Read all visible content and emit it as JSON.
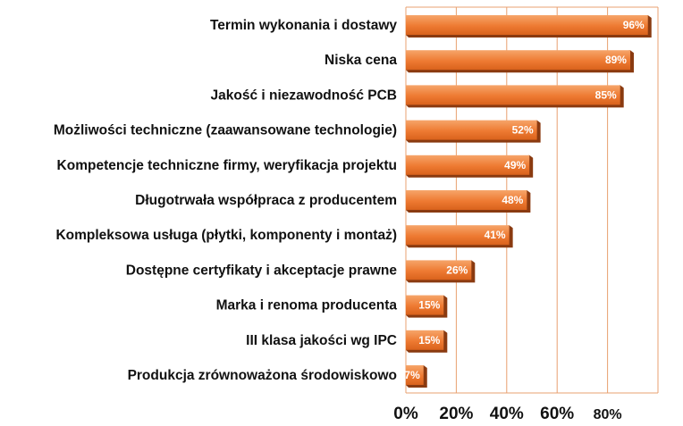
{
  "chart_data": {
    "type": "bar",
    "orientation": "horizontal",
    "categories": [
      "Termin wykonania i dostawy",
      "Niska cena",
      "Jakość i niezawodność PCB",
      "Możliwości techniczne (zaawansowane technologie)",
      "Kompetencje techniczne firmy, weryfikacja projektu",
      "Długotrwała współpraca z producentem",
      "Kompleksowa usługa (płytki, komponenty i montaż)",
      "Dostępne certyfikaty i akceptacje prawne",
      "Marka i renoma producenta",
      "III klasa jakości wg IPC",
      "Produkcja zrównoważona środowiskowo"
    ],
    "values": [
      96,
      89,
      85,
      52,
      49,
      48,
      41,
      26,
      15,
      15,
      7
    ],
    "value_labels": [
      "96%",
      "89%",
      "85%",
      "52%",
      "49%",
      "48%",
      "41%",
      "26%",
      "15%",
      "15%",
      "7%"
    ],
    "x_ticks": [
      "0%",
      "20%",
      "40%",
      "60%",
      "80%"
    ],
    "xlim": [
      0,
      100
    ],
    "grid": true,
    "bar_color": "#ee7a32",
    "grid_color": "#e8a070"
  }
}
